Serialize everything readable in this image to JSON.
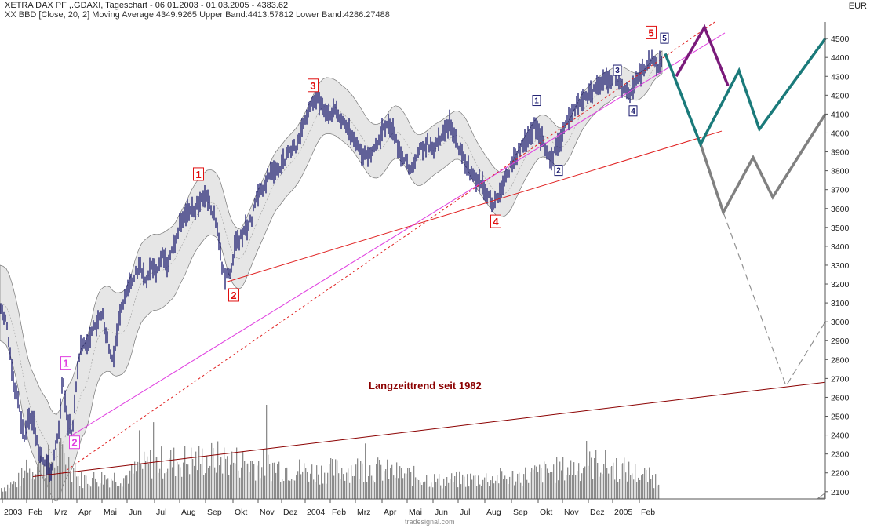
{
  "header": {
    "title": "XETRA DAX PF ,.GDAXI, Tageschart - 06.01.2003 - 01.03.2005 - 4383.62",
    "indicator": "XX BBD [Close, 20, 2] Moving Average:4349.9265 Upper Band:4413.57812 Lower Band:4286.27488",
    "unit": "EUR",
    "credit": "tradesignal.com"
  },
  "colors": {
    "candles": "#1a1a6e",
    "band_fill": "#e6e6e6",
    "band_line": "#777777",
    "volume": "#8c8c8c",
    "trendline": "#e02020",
    "longterm": "#8b0000",
    "support": "#e040e0",
    "forecast_purple": "#7a1a7a",
    "forecast_teal": "#1a7a7a",
    "forecast_grey": "#808080",
    "wave_main": "#e01010",
    "wave_sub": "#1a1a6e"
  },
  "chart_data": {
    "type": "line",
    "ylabel": "EUR",
    "ylim": [
      2080,
      4600
    ],
    "y_ticks": [
      2100,
      2200,
      2300,
      2400,
      2500,
      2600,
      2700,
      2800,
      2900,
      3000,
      3100,
      3200,
      3300,
      3400,
      3500,
      3600,
      3700,
      3800,
      3900,
      4000,
      4100,
      4200,
      4300,
      4400,
      4500
    ],
    "x_ticks": [
      "2003",
      "Feb",
      "Mrz",
      "Apr",
      "Mai",
      "Jun",
      "Jul",
      "Aug",
      "Sep",
      "Okt",
      "Nov",
      "Dez",
      "2004",
      "Feb",
      "Mrz",
      "Apr",
      "Mai",
      "Jun",
      "Jul",
      "Aug",
      "Sep",
      "Okt",
      "Nov",
      "Dez",
      "2005",
      "Feb"
    ],
    "grid": false,
    "series": [
      {
        "key": "price",
        "values": [
          [
            0,
            3100
          ],
          [
            8,
            3000
          ],
          [
            16,
            2700
          ],
          [
            24,
            2550
          ],
          [
            31,
            2400
          ],
          [
            36,
            2500
          ],
          [
            43,
            2450
          ],
          [
            50,
            2300
          ],
          [
            58,
            2250
          ],
          [
            64,
            2200
          ],
          [
            70,
            2300
          ],
          [
            75,
            2450
          ],
          [
            80,
            2700
          ],
          [
            85,
            2500
          ],
          [
            92,
            2400
          ],
          [
            98,
            2700
          ],
          [
            104,
            2900
          ],
          [
            110,
            2850
          ],
          [
            117,
            2950
          ],
          [
            124,
            3000
          ],
          [
            130,
            3050
          ],
          [
            137,
            2900
          ],
          [
            144,
            2800
          ],
          [
            151,
            3000
          ],
          [
            158,
            3100
          ],
          [
            165,
            3200
          ],
          [
            172,
            3250
          ],
          [
            179,
            3300
          ],
          [
            186,
            3200
          ],
          [
            193,
            3300
          ],
          [
            200,
            3250
          ],
          [
            207,
            3350
          ],
          [
            214,
            3300
          ],
          [
            221,
            3400
          ],
          [
            228,
            3500
          ],
          [
            235,
            3550
          ],
          [
            242,
            3600
          ],
          [
            249,
            3600
          ],
          [
            256,
            3650
          ],
          [
            263,
            3680
          ],
          [
            270,
            3600
          ],
          [
            277,
            3500
          ],
          [
            283,
            3300
          ],
          [
            288,
            3230
          ],
          [
            294,
            3280
          ],
          [
            300,
            3400
          ],
          [
            307,
            3450
          ],
          [
            314,
            3500
          ],
          [
            321,
            3550
          ],
          [
            328,
            3680
          ],
          [
            335,
            3700
          ],
          [
            342,
            3780
          ],
          [
            349,
            3800
          ],
          [
            356,
            3820
          ],
          [
            363,
            3860
          ],
          [
            370,
            3900
          ],
          [
            377,
            3930
          ],
          [
            384,
            4020
          ],
          [
            391,
            4100
          ],
          [
            398,
            4160
          ],
          [
            405,
            4180
          ],
          [
            412,
            4140
          ],
          [
            419,
            4100
          ],
          [
            426,
            4120
          ],
          [
            433,
            4080
          ],
          [
            440,
            4050
          ],
          [
            447,
            3980
          ],
          [
            454,
            3950
          ],
          [
            461,
            3900
          ],
          [
            468,
            3860
          ],
          [
            475,
            3900
          ],
          [
            482,
            3960
          ],
          [
            489,
            4030
          ],
          [
            496,
            4050
          ],
          [
            503,
            4000
          ],
          [
            510,
            3880
          ],
          [
            517,
            3850
          ],
          [
            524,
            3800
          ],
          [
            531,
            3880
          ],
          [
            538,
            3920
          ],
          [
            545,
            3950
          ],
          [
            552,
            3900
          ],
          [
            559,
            3950
          ],
          [
            566,
            4000
          ],
          [
            573,
            4050
          ],
          [
            580,
            3970
          ],
          [
            587,
            3900
          ],
          [
            594,
            3840
          ],
          [
            601,
            3780
          ],
          [
            608,
            3750
          ],
          [
            615,
            3720
          ],
          [
            622,
            3680
          ],
          [
            628,
            3620
          ],
          [
            634,
            3650
          ],
          [
            640,
            3720
          ],
          [
            647,
            3780
          ],
          [
            654,
            3850
          ],
          [
            661,
            3900
          ],
          [
            668,
            3950
          ],
          [
            675,
            3970
          ],
          [
            682,
            4050
          ],
          [
            689,
            3980
          ],
          [
            696,
            3920
          ],
          [
            702,
            3860
          ],
          [
            708,
            3900
          ],
          [
            714,
            3960
          ],
          [
            720,
            4050
          ],
          [
            727,
            4080
          ],
          [
            734,
            4150
          ],
          [
            741,
            4180
          ],
          [
            748,
            4200
          ],
          [
            755,
            4210
          ],
          [
            762,
            4250
          ],
          [
            769,
            4280
          ],
          [
            776,
            4260
          ],
          [
            783,
            4310
          ],
          [
            790,
            4260
          ],
          [
            797,
            4230
          ],
          [
            804,
            4200
          ],
          [
            811,
            4280
          ],
          [
            818,
            4330
          ],
          [
            825,
            4360
          ],
          [
            832,
            4410
          ],
          [
            838,
            4350
          ],
          [
            844,
            4400
          ]
        ]
      },
      {
        "key": "upper_band_offset",
        "values": [
          [
            0,
            200
          ],
          [
            100,
            240
          ],
          [
            300,
            160
          ],
          [
            500,
            140
          ],
          [
            700,
            110
          ],
          [
            844,
            60
          ]
        ]
      },
      {
        "key": "volume",
        "values": [
          [
            0,
            0.12
          ],
          [
            20,
            0.18
          ],
          [
            40,
            0.35
          ],
          [
            68,
            0.45
          ],
          [
            80,
            0.5
          ],
          [
            100,
            0.22
          ],
          [
            160,
            0.25
          ],
          [
            190,
            0.4
          ],
          [
            276,
            0.45
          ],
          [
            400,
            0.3
          ],
          [
            465,
            0.35
          ],
          [
            560,
            0.2
          ],
          [
            660,
            0.25
          ],
          [
            764,
            0.4
          ],
          [
            844,
            0.2
          ]
        ]
      }
    ]
  },
  "lines": {
    "long_term": {
      "x1": 42,
      "v1": 2180,
      "x2": 1052,
      "v2": 2680,
      "label": "Langzeittrend seit 1982"
    },
    "trend_2_4": {
      "x1": 288,
      "v1": 3210,
      "x2": 920,
      "v2": 4010
    },
    "support_magenta": {
      "x1": 92,
      "v1": 2400,
      "x2": 924,
      "v2": 4530
    },
    "support_dashed": {
      "x1": 80,
      "v1": 2200,
      "x2": 912,
      "v2": 4590
    },
    "forecast_purple": [
      [
        862,
        4300
      ],
      [
        898,
        4560
      ],
      [
        928,
        4250
      ]
    ],
    "forecast_teal": [
      [
        848,
        4420
      ],
      [
        893,
        3940
      ],
      [
        942,
        4330
      ],
      [
        968,
        4020
      ],
      [
        1052,
        4500
      ]
    ],
    "forecast_grey": [
      [
        893,
        3940
      ],
      [
        922,
        3580
      ],
      [
        960,
        3870
      ],
      [
        985,
        3660
      ],
      [
        1052,
        4100
      ]
    ],
    "forecast_dashed": [
      [
        922,
        3580
      ],
      [
        1002,
        2660
      ],
      [
        1052,
        3000
      ]
    ]
  },
  "wave_labels": [
    {
      "text": "1",
      "x": 84,
      "v": 2780,
      "color": "#e040e0",
      "size": 15
    },
    {
      "text": "2",
      "x": 95,
      "v": 2360,
      "color": "#e040e0",
      "size": 15
    },
    {
      "text": "1",
      "x": 253,
      "v": 3780,
      "color": "#e01010",
      "size": 15
    },
    {
      "text": "2",
      "x": 298,
      "v": 3140,
      "color": "#e01010",
      "size": 15
    },
    {
      "text": "3",
      "x": 399,
      "v": 4250,
      "color": "#e01010",
      "size": 15
    },
    {
      "text": "4",
      "x": 632,
      "v": 3530,
      "color": "#e01010",
      "size": 15
    },
    {
      "text": "5",
      "x": 830,
      "v": 4530,
      "color": "#e01010",
      "size": 15
    },
    {
      "text": "1",
      "x": 684,
      "v": 4170,
      "color": "#1a1a6e",
      "size": 12
    },
    {
      "text": "2",
      "x": 712,
      "v": 3800,
      "color": "#1a1a6e",
      "size": 12
    },
    {
      "text": "3",
      "x": 787,
      "v": 4330,
      "color": "#1a1a6e",
      "size": 12
    },
    {
      "text": "4",
      "x": 807,
      "v": 4115,
      "color": "#1a1a6e",
      "size": 12
    },
    {
      "text": "5",
      "x": 847,
      "v": 4500,
      "color": "#1a1a6e",
      "size": 12
    }
  ]
}
